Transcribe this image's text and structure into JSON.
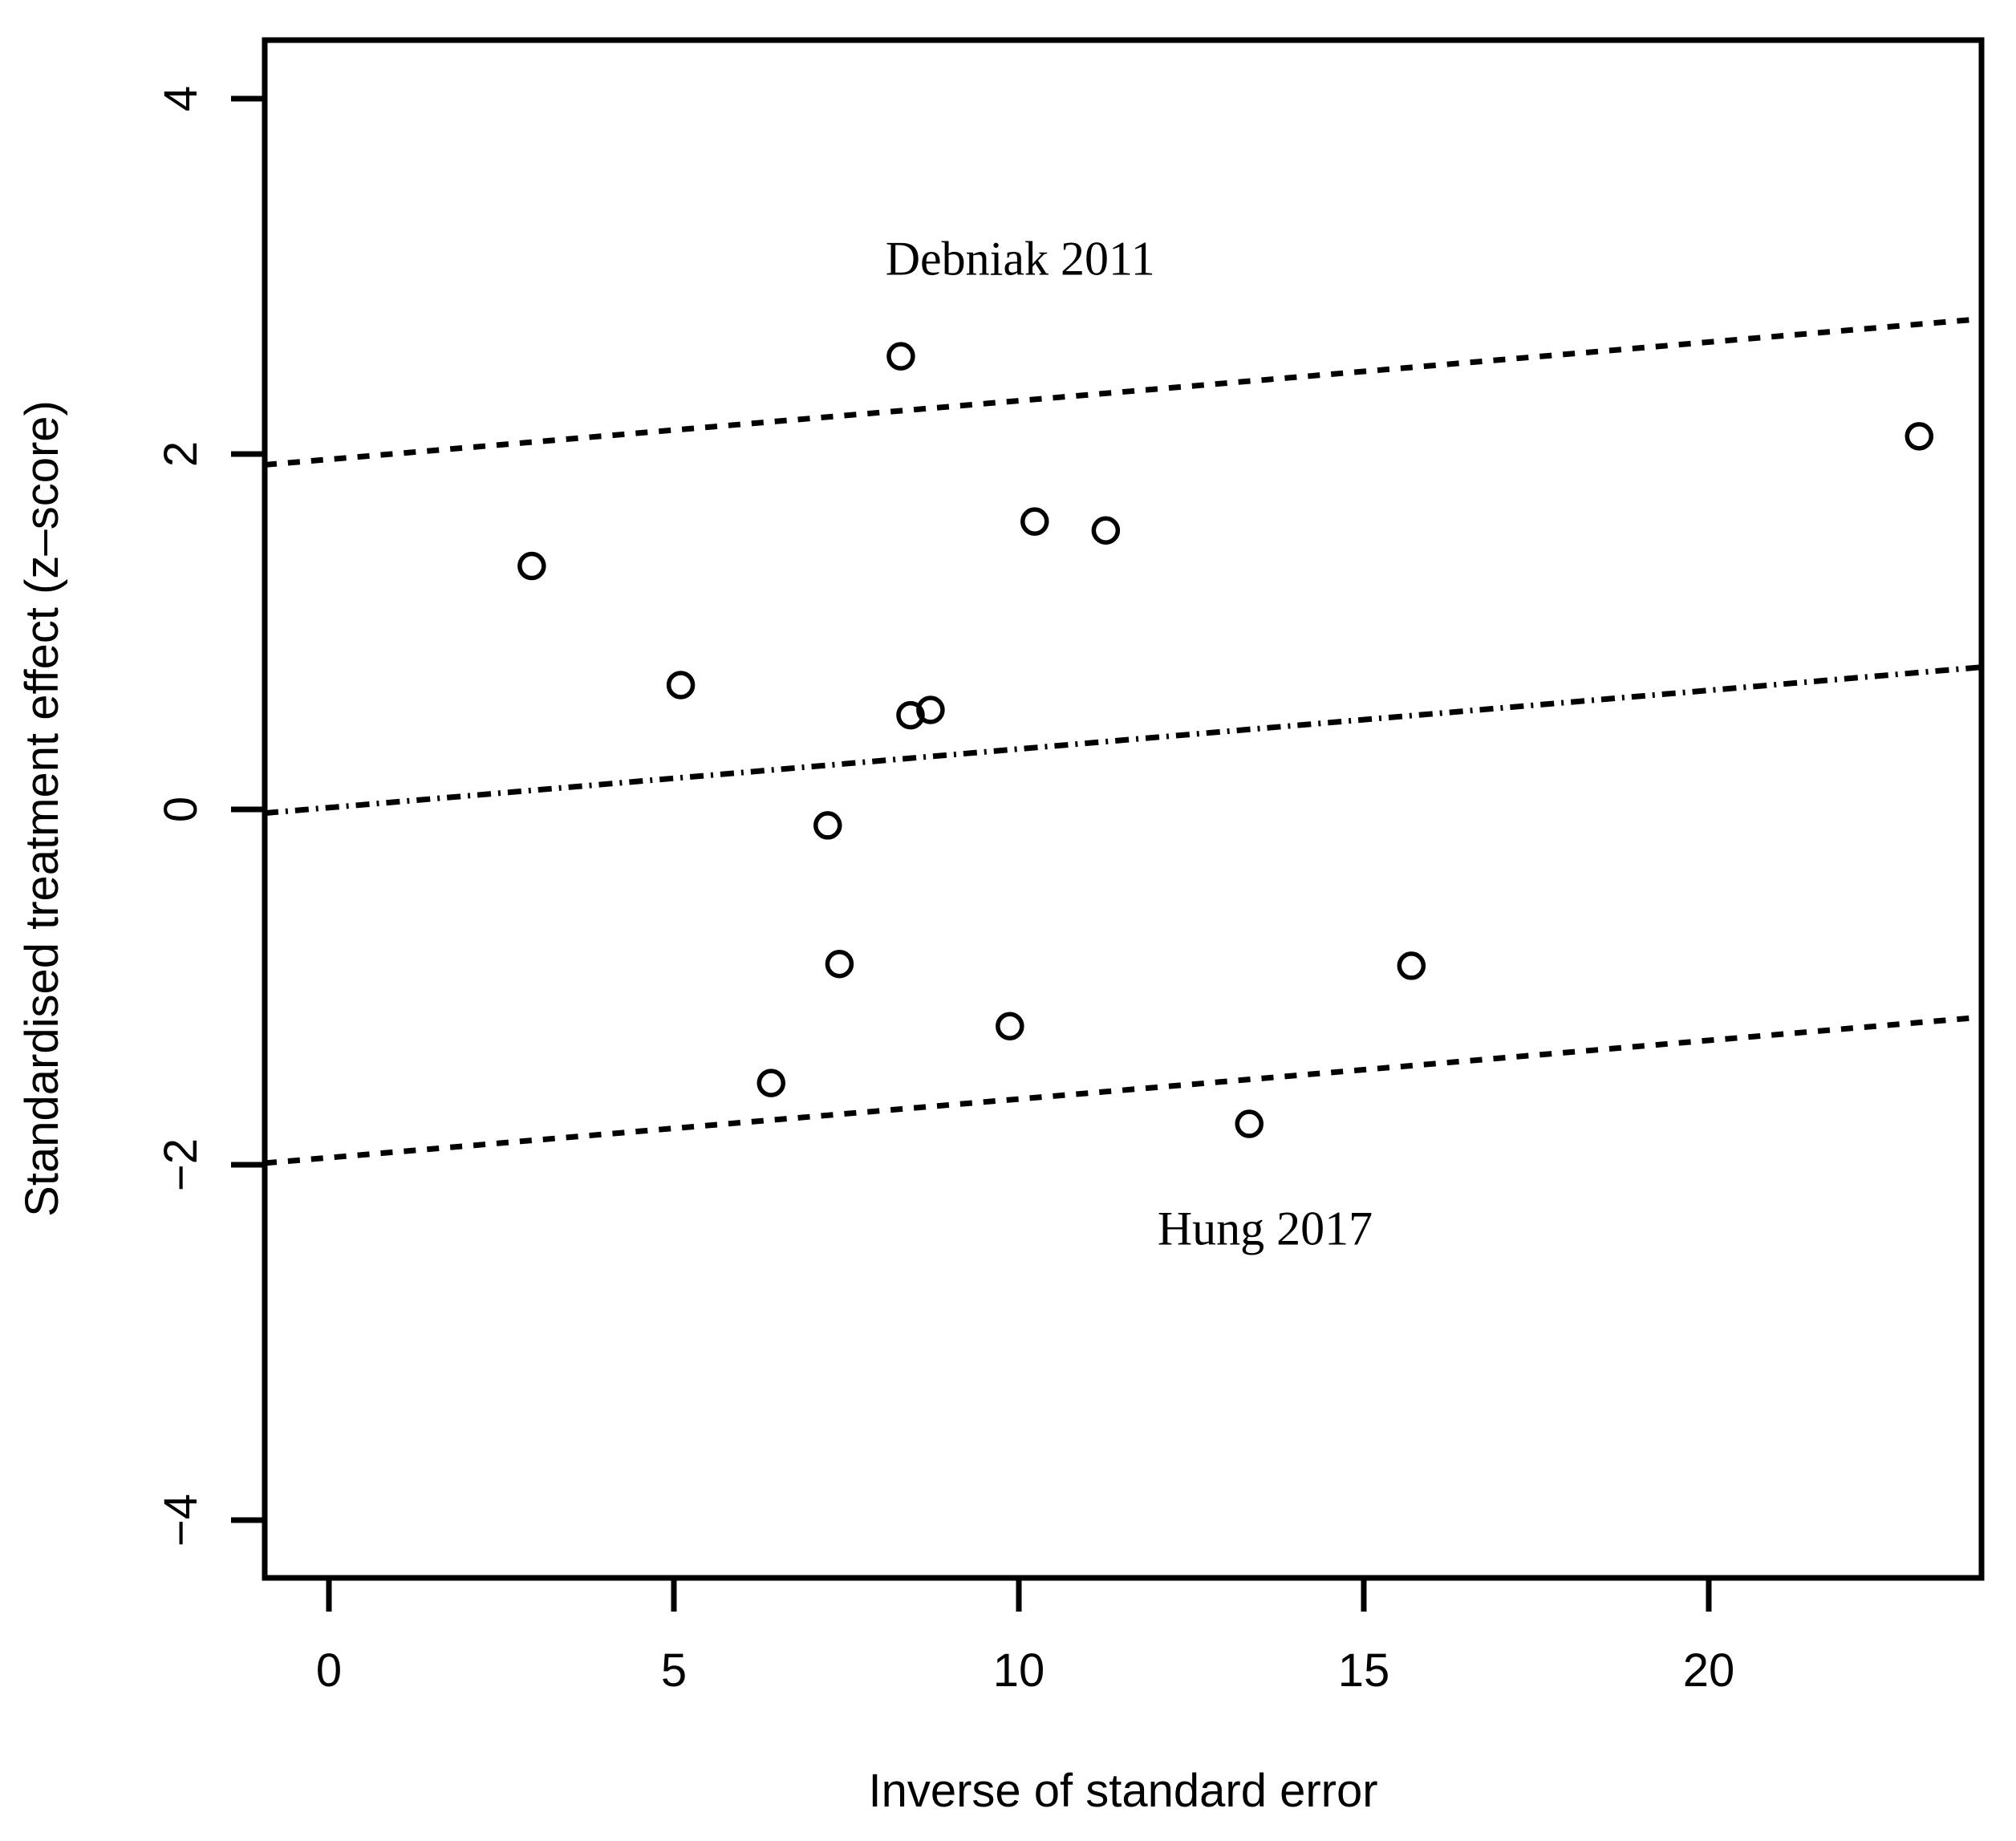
{
  "figure": {
    "background": "#ffffff",
    "foreground": "#000000"
  },
  "chart_data": {
    "type": "scatter",
    "title": "",
    "xlabel": "Inverse of standard error",
    "ylabel": "Standardised treatment effect (z–score)",
    "xlim": [
      -0.93,
      23.95
    ],
    "ylim": [
      -4.33,
      4.33
    ],
    "grid": false,
    "legend": "none",
    "x_ticks": [
      {
        "value": 0,
        "label": "0"
      },
      {
        "value": 5,
        "label": "5"
      },
      {
        "value": 10,
        "label": "10"
      },
      {
        "value": 15,
        "label": "15"
      },
      {
        "value": 20,
        "label": "20"
      }
    ],
    "y_ticks": [
      {
        "value": 4,
        "label": "4"
      },
      {
        "value": 2,
        "label": "2"
      },
      {
        "value": 0,
        "label": "0"
      },
      {
        "value": -2,
        "label": "−2"
      },
      {
        "value": -4,
        "label": "−4"
      }
    ],
    "points": [
      {
        "x": 2.94,
        "y": 1.37
      },
      {
        "x": 5.1,
        "y": 0.7
      },
      {
        "x": 8.29,
        "y": 2.55
      },
      {
        "x": 8.43,
        "y": 0.53
      },
      {
        "x": 8.72,
        "y": 0.56
      },
      {
        "x": 7.23,
        "y": -0.09
      },
      {
        "x": 7.4,
        "y": -0.87
      },
      {
        "x": 9.87,
        "y": -1.22
      },
      {
        "x": 6.41,
        "y": -1.54
      },
      {
        "x": 10.23,
        "y": 1.62
      },
      {
        "x": 11.26,
        "y": 1.57
      },
      {
        "x": 13.34,
        "y": -1.77
      },
      {
        "x": 15.69,
        "y": -0.88
      },
      {
        "x": 23.05,
        "y": 2.1
      }
    ],
    "lines": [
      {
        "name": "upper-95-ci-line",
        "style": "dashed",
        "intercept": 1.97,
        "slope": 0.033
      },
      {
        "name": "regression-line",
        "style": "dotdash",
        "intercept": 0.01,
        "slope": 0.033
      },
      {
        "name": "lower-95-ci-line",
        "style": "dashed",
        "intercept": -1.96,
        "slope": 0.033
      }
    ],
    "annotations": [
      {
        "text": "Debniak 2011",
        "x": 10.02,
        "y": 3.1
      },
      {
        "text": "Hung 2017",
        "x": 13.57,
        "y": -2.36
      }
    ]
  }
}
